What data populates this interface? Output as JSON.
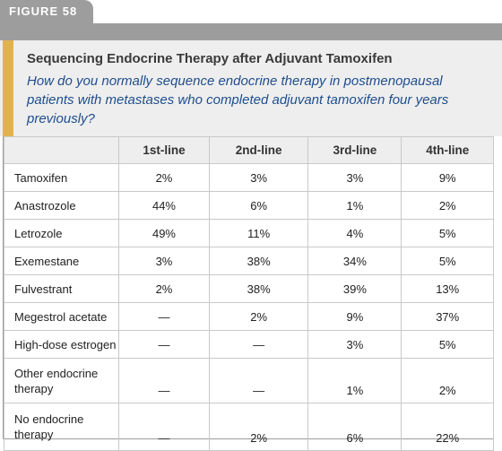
{
  "figure_label": "FIGURE 58",
  "title": "Sequencing Endocrine Therapy after Adjuvant Tamoxifen",
  "question": "How do you normally sequence endocrine therapy in postmenopausal patients with metastases who completed adjuvant tamoxifen four years previously?",
  "colors": {
    "tab": "#9d9d9d",
    "accent": "#e2b34c",
    "question_text": "#1f4e8c",
    "header_bg": "#eeeeee"
  },
  "table": {
    "columns": [
      "",
      "1st-line",
      "2nd-line",
      "3rd-line",
      "4th-line"
    ],
    "rows": [
      {
        "label": "Tamoxifen",
        "values": [
          "2%",
          "3%",
          "3%",
          "9%"
        ]
      },
      {
        "label": "Anastrozole",
        "values": [
          "44%",
          "6%",
          "1%",
          "2%"
        ]
      },
      {
        "label": "Letrozole",
        "values": [
          "49%",
          "11%",
          "4%",
          "5%"
        ]
      },
      {
        "label": "Exemestane",
        "values": [
          "3%",
          "38%",
          "34%",
          "5%"
        ]
      },
      {
        "label": "Fulvestrant",
        "values": [
          "2%",
          "38%",
          "39%",
          "13%"
        ]
      },
      {
        "label": "Megestrol acetate",
        "values": [
          "—",
          "2%",
          "9%",
          "37%"
        ]
      },
      {
        "label": "High-dose estrogen",
        "values": [
          "—",
          "—",
          "3%",
          "5%"
        ]
      },
      {
        "label": "Other endocrine therapy",
        "values": [
          "—",
          "—",
          "1%",
          "2%"
        ]
      },
      {
        "label": "No endocrine therapy",
        "values": [
          "—",
          "2%",
          "6%",
          "22%"
        ]
      }
    ]
  }
}
